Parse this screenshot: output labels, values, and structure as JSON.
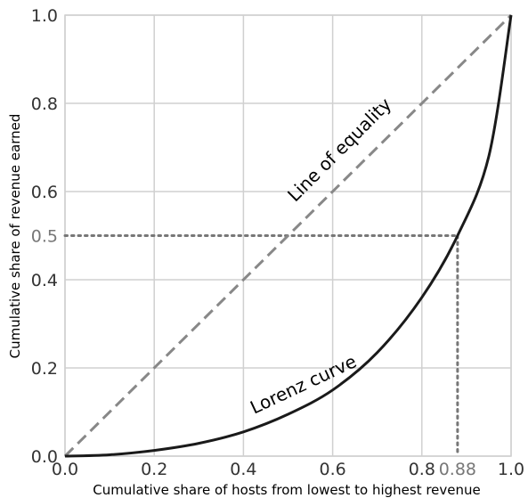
{
  "chart_data": {
    "type": "line",
    "xlabel": "Cumulative share of hosts from lowest to highest revenue",
    "ylabel": "Cumulative share of revenue earned",
    "xlim": [
      0,
      1
    ],
    "ylim": [
      0,
      1
    ],
    "x_ticks": [
      "0.0",
      "0.2",
      "0.4",
      "0.6",
      "0.8",
      "1.0"
    ],
    "y_ticks": [
      "0.0",
      "0.2",
      "0.4",
      "0.6",
      "0.8",
      "1.0"
    ],
    "grid": true,
    "series": [
      {
        "name": "Line of equality",
        "style": "dashed",
        "color": "#888888",
        "x": [
          0,
          1
        ],
        "y": [
          0,
          1
        ]
      },
      {
        "name": "Lorenz curve",
        "style": "solid",
        "color": "#1a1a1a",
        "x": [
          0,
          0.1,
          0.2,
          0.3,
          0.4,
          0.5,
          0.6,
          0.7,
          0.8,
          0.88,
          0.95,
          1.0
        ],
        "y": [
          0,
          0.003,
          0.013,
          0.029,
          0.055,
          0.095,
          0.15,
          0.235,
          0.36,
          0.5,
          0.68,
          1.0
        ]
      }
    ],
    "annotations": [
      {
        "text": "Line of equality",
        "x": 0.625,
        "y": 0.685,
        "angle": 45
      },
      {
        "text": "Lorenz curve",
        "x": 0.54,
        "y": 0.15,
        "angle": 25
      }
    ],
    "reference": {
      "x": 0.88,
      "y": 0.5,
      "x_label": "0.88",
      "y_label": "0.5",
      "style": "dotted",
      "color": "#777777"
    }
  }
}
